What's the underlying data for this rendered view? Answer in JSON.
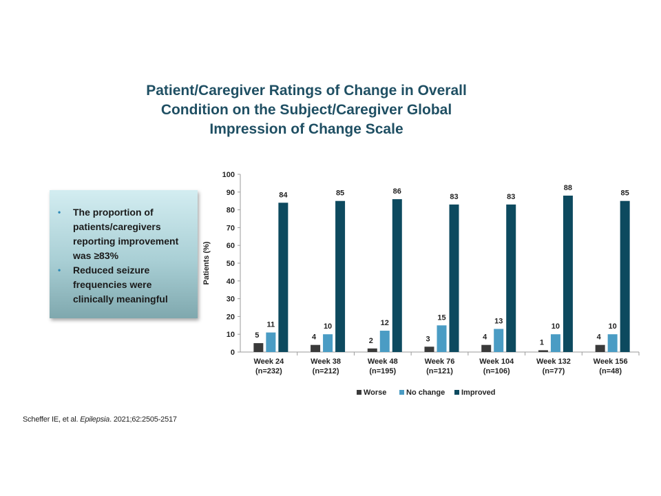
{
  "slide": {
    "title_lines": [
      "Patient/Caregiver Ratings of Change in Overall",
      "Condition on the Subject/Caregiver Global",
      "Impression of Change Scale"
    ],
    "callout": {
      "bullets": [
        "The proportion of patients/caregivers reporting improvement was ≥83%",
        "Reduced seizure frequencies were clinically meaningful"
      ]
    },
    "citation": {
      "authors": "Scheffer IE, et al.",
      "journal": "Epilepsia",
      "details": "2021;62:2505-2517"
    }
  },
  "chart_data": {
    "type": "bar",
    "categories": [
      [
        "Week 24",
        "(n=232)"
      ],
      [
        "Week 38",
        "(n=212)"
      ],
      [
        "Week 48",
        "(n=195)"
      ],
      [
        "Week 76",
        "(n=121)"
      ],
      [
        "Week 104",
        "(n=106)"
      ],
      [
        "Week 132",
        "(n=77)"
      ],
      [
        "Week 156",
        "(n=48)"
      ]
    ],
    "series": [
      {
        "name": "Worse",
        "color": "#3a3a3a",
        "values": [
          5,
          4,
          2,
          3,
          4,
          1,
          4
        ]
      },
      {
        "name": "No change",
        "color": "#4a9cc4",
        "values": [
          11,
          10,
          12,
          15,
          13,
          10,
          10
        ]
      },
      {
        "name": "Improved",
        "color": "#0d4a5f",
        "values": [
          84,
          85,
          86,
          83,
          83,
          88,
          85
        ]
      }
    ],
    "ylabel": "Patients (%)",
    "ylim": [
      0,
      100
    ],
    "yticks": [
      0,
      10,
      20,
      30,
      40,
      50,
      60,
      70,
      80,
      90,
      100
    ],
    "grid": false,
    "legend_position": "bottom",
    "data_labels": true
  }
}
